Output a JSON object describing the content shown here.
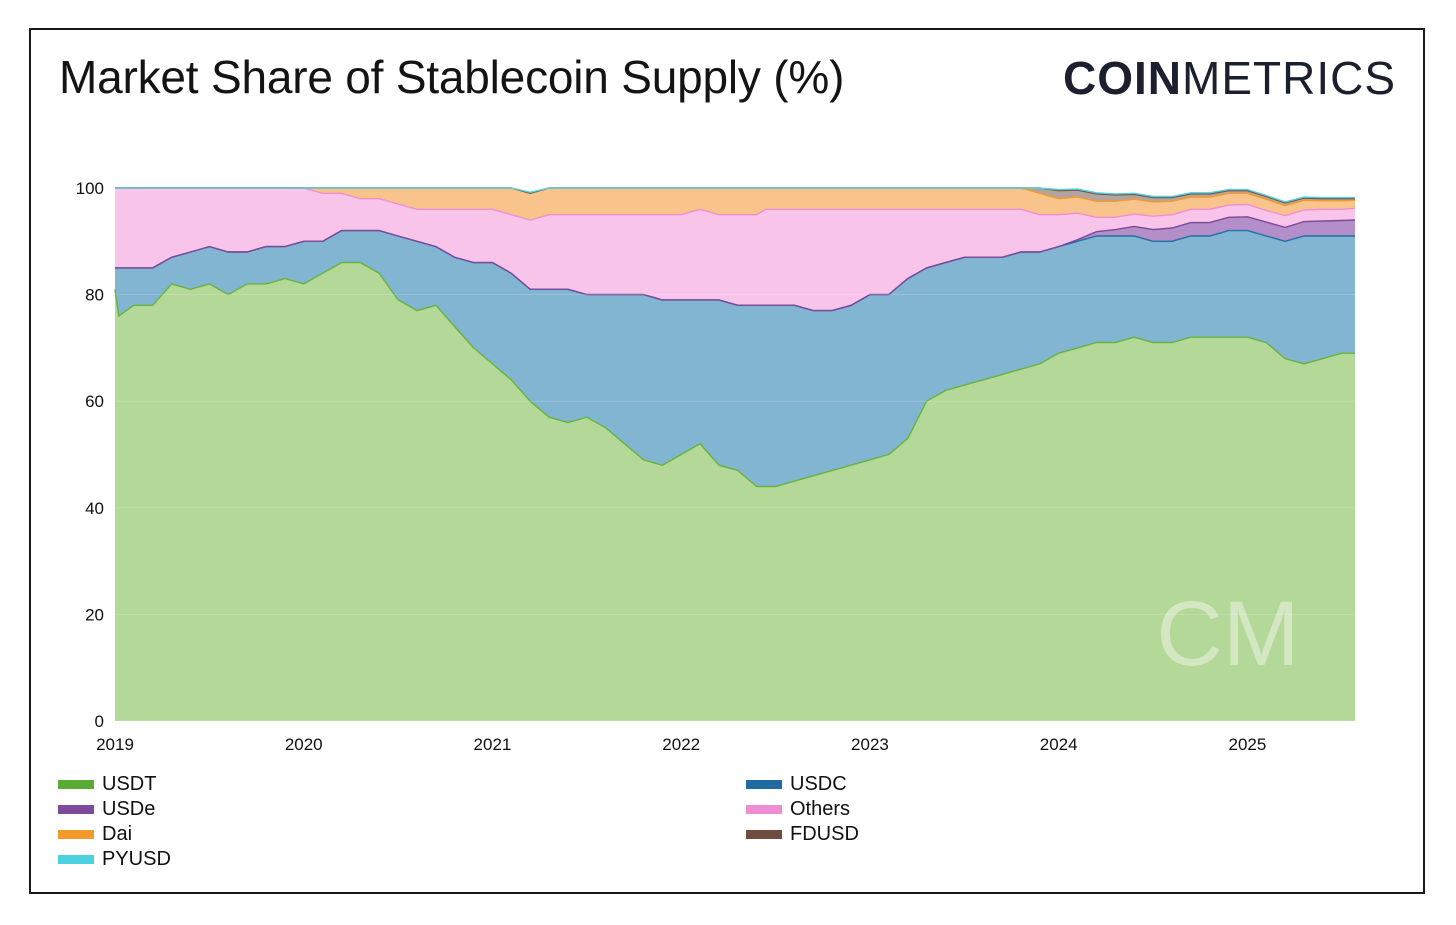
{
  "title": "Market Share of Stablecoin Supply (%)",
  "logo": {
    "bold": "COIN",
    "light": "METRICS",
    "watermark": "CM"
  },
  "chart_data": {
    "type": "area",
    "stacked": true,
    "title": "Market Share of Stablecoin Supply (%)",
    "xlabel": "",
    "ylabel": "",
    "ylim": [
      0,
      100
    ],
    "xlim": [
      2019.0,
      2025.57
    ],
    "yticks": [
      0,
      20,
      40,
      60,
      80,
      100
    ],
    "xticks": [
      "2019",
      "2020",
      "2021",
      "2022",
      "2023",
      "2024",
      "2025"
    ],
    "x": [
      2019.0,
      2019.02,
      2019.1,
      2019.2,
      2019.3,
      2019.4,
      2019.5,
      2019.6,
      2019.7,
      2019.8,
      2019.9,
      2020.0,
      2020.1,
      2020.2,
      2020.3,
      2020.4,
      2020.5,
      2020.6,
      2020.7,
      2020.8,
      2020.9,
      2021.0,
      2021.1,
      2021.2,
      2021.3,
      2021.4,
      2021.5,
      2021.6,
      2021.7,
      2021.8,
      2021.9,
      2022.0,
      2022.1,
      2022.2,
      2022.3,
      2022.4,
      2022.45,
      2022.5,
      2022.6,
      2022.7,
      2022.8,
      2022.9,
      2023.0,
      2023.1,
      2023.2,
      2023.3,
      2023.4,
      2023.5,
      2023.6,
      2023.7,
      2023.8,
      2023.9,
      2024.0,
      2024.1,
      2024.2,
      2024.3,
      2024.4,
      2024.5,
      2024.6,
      2024.7,
      2024.8,
      2024.9,
      2025.0,
      2025.1,
      2025.2,
      2025.3,
      2025.4,
      2025.5,
      2025.57
    ],
    "series": [
      {
        "name": "USDT",
        "color": "#6ab23e",
        "fill": "#b3d897",
        "values": [
          81,
          76,
          78,
          78,
          82,
          81,
          82,
          80,
          82,
          82,
          83,
          82,
          84,
          86,
          86,
          84,
          79,
          77,
          78,
          74,
          70,
          67,
          64,
          60,
          57,
          56,
          57,
          55,
          52,
          49,
          48,
          50,
          52,
          48,
          47,
          44,
          44,
          44,
          45,
          46,
          47,
          48,
          49,
          50,
          53,
          60,
          62,
          63,
          64,
          65,
          66,
          67,
          69,
          70,
          71,
          71,
          72,
          71,
          71,
          72,
          72,
          72,
          72,
          71,
          68,
          67,
          68,
          69,
          69
        ]
      },
      {
        "name": "USDC",
        "color": "#2270a6",
        "fill": "#82b5d2",
        "values": [
          4,
          9,
          7,
          7,
          5,
          7,
          7,
          8,
          6,
          7,
          6,
          8,
          6,
          6,
          6,
          8,
          12,
          13,
          11,
          13,
          16,
          19,
          20,
          21,
          24,
          25,
          23,
          25,
          28,
          31,
          31,
          29,
          27,
          31,
          31,
          34,
          34,
          34,
          33,
          31,
          30,
          30,
          31,
          30,
          30,
          25,
          24,
          24,
          23,
          22,
          22,
          21,
          20,
          20,
          20,
          20,
          19,
          19,
          19,
          19,
          19,
          20,
          20,
          20,
          22,
          24,
          23,
          22,
          22
        ]
      },
      {
        "name": "USDe",
        "color": "#7b4a9a",
        "fill": "#b48ec8",
        "values": [
          0,
          0,
          0,
          0,
          0,
          0,
          0,
          0,
          0,
          0,
          0,
          0,
          0,
          0,
          0,
          0,
          0,
          0,
          0,
          0,
          0,
          0,
          0,
          0,
          0,
          0,
          0,
          0,
          0,
          0,
          0,
          0,
          0,
          0,
          0,
          0,
          0,
          0,
          0,
          0,
          0,
          0,
          0,
          0,
          0,
          0,
          0,
          0,
          0,
          0,
          0,
          0,
          0,
          0.3,
          0.8,
          1.2,
          1.8,
          2.2,
          2.5,
          2.5,
          2.5,
          2.5,
          2.6,
          2.6,
          2.6,
          2.7,
          2.8,
          2.9,
          3
        ]
      },
      {
        "name": "Others",
        "color": "#f08fd0",
        "fill": "#f9c4ea",
        "values": [
          15,
          15,
          15,
          15,
          13,
          12,
          11,
          12,
          12,
          11,
          11,
          10,
          9,
          7,
          6,
          6,
          6,
          6,
          7,
          9,
          10,
          10,
          11,
          13,
          14,
          14,
          15,
          15,
          15,
          15,
          16,
          16,
          17,
          16,
          17,
          17,
          18,
          18,
          18,
          19,
          19,
          18,
          16,
          16,
          13,
          11,
          10,
          9,
          9,
          9,
          8,
          7,
          6,
          5,
          2.7,
          2.3,
          2.3,
          2.5,
          2.5,
          2.5,
          2.5,
          2.3,
          2.3,
          2.2,
          2.2,
          2.2,
          2.2,
          2.1,
          2.2
        ]
      },
      {
        "name": "Dai",
        "color": "#f39a2b",
        "fill": "#f8c48c",
        "values": [
          0,
          0,
          0,
          0,
          0,
          0,
          0,
          0,
          0,
          0,
          0,
          0,
          1,
          1,
          2,
          2,
          3,
          4,
          4,
          4,
          4,
          4,
          5,
          5,
          5,
          5,
          5,
          5,
          5,
          5,
          5,
          5,
          4,
          5,
          5,
          5,
          4,
          4,
          4,
          4,
          4,
          4,
          4,
          4,
          4,
          4,
          4,
          4,
          4,
          4,
          4,
          4,
          3,
          3,
          3,
          3,
          2.8,
          2.7,
          2.5,
          2.3,
          2.3,
          2.2,
          2.1,
          2.1,
          1.9,
          1.8,
          1.6,
          1.6,
          1.5
        ]
      },
      {
        "name": "FDUSD",
        "color": "#7a5546",
        "fill": "#b4a4a0",
        "values": [
          0,
          0,
          0,
          0,
          0,
          0,
          0,
          0,
          0,
          0,
          0,
          0,
          0,
          0,
          0,
          0,
          0,
          0,
          0,
          0,
          0,
          0,
          0,
          0,
          0,
          0,
          0,
          0,
          0,
          0,
          0,
          0,
          0,
          0,
          0,
          0,
          0,
          0,
          0,
          0,
          0,
          0,
          0,
          0,
          0,
          0,
          0,
          0,
          0,
          0,
          0.5,
          1,
          1.5,
          1.3,
          1.4,
          1.2,
          0.9,
          0.8,
          0.7,
          0.6,
          0.6,
          0.5,
          0.5,
          0.5,
          0.5,
          0.4,
          0.4,
          0.4,
          0.3
        ]
      },
      {
        "name": "PYUSD",
        "color": "#4dd0df",
        "fill": "#9ee4ee",
        "values": [
          0.3,
          0.3,
          0.3,
          0.3,
          0.3,
          0.3,
          0.3,
          0.3,
          0.3,
          0.3,
          0.2,
          0.2,
          0.2,
          0.2,
          0.2,
          0.2,
          0.2,
          0.2,
          0.2,
          0.2,
          0.2,
          0.2,
          0.2,
          0.2,
          0.2,
          0.2,
          0.2,
          0.2,
          0.2,
          0.2,
          0.2,
          0.2,
          0.2,
          0.2,
          0.2,
          0.2,
          0.2,
          0.2,
          0.2,
          0.2,
          0.2,
          0.2,
          0.2,
          0.2,
          0.2,
          0.2,
          0.2,
          0.2,
          0.2,
          0.2,
          0.2,
          0.2,
          0.2,
          0.2,
          0.2,
          0.2,
          0.2,
          0.2,
          0.2,
          0.2,
          0.2,
          0.2,
          0.2,
          0.2,
          0.2,
          0.2,
          0.2,
          0.2,
          0.2
        ]
      }
    ],
    "legend": [
      {
        "name": "USDT",
        "color": "#5aab36"
      },
      {
        "name": "USDC",
        "color": "#1f6aa0"
      },
      {
        "name": "USDe",
        "color": "#7d4a9c"
      },
      {
        "name": "Others",
        "color": "#ee8ed2"
      },
      {
        "name": "Dai",
        "color": "#f39a2b"
      },
      {
        "name": "FDUSD",
        "color": "#6f4d3f"
      },
      {
        "name": "PYUSD",
        "color": "#4dd0df"
      }
    ],
    "legend_position": "bottom-left, two columns"
  }
}
